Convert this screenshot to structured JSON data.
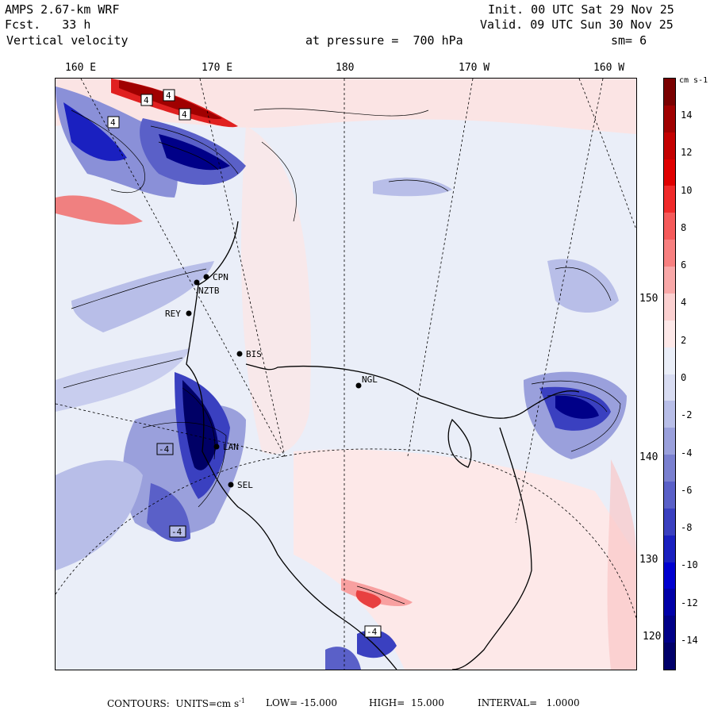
{
  "header": {
    "model": "AMPS 2.67-km WRF",
    "fcst": "Fcst.   33 h",
    "field": "Vertical velocity",
    "init": "Init. 00 UTC Sat 29 Nov 25",
    "valid": "Valid. 09 UTC Sun 30 Nov 25",
    "level": "at pressure =  700 hPa",
    "smooth": "sm= 6"
  },
  "longitude_labels": [
    "160 E",
    "170 E",
    "180",
    "170 W",
    "160 W"
  ],
  "latitude_labels": [
    "150 W",
    "140 W",
    "130 W",
    "120 W"
  ],
  "stations": [
    "CPN",
    "NZTB",
    "REY",
    "BIS",
    "NGL",
    "LAN",
    "SEL"
  ],
  "extrema_labels": [
    "4",
    "4",
    "4",
    "4",
    "-4",
    "-4",
    "-4"
  ],
  "colorbar": {
    "unit": "cm s-1",
    "ticks": [
      "14",
      "12",
      "10",
      "8",
      "6",
      "4",
      "2",
      "0",
      "-2",
      "-4",
      "-6",
      "-8",
      "-10",
      "-12",
      "-14"
    ],
    "colors": [
      "#7a0000",
      "#a00000",
      "#c40000",
      "#e00000",
      "#f02a2a",
      "#f55a5a",
      "#f88080",
      "#f9a8a8",
      "#fbd0d0",
      "#fde8e8",
      "#eaeef8",
      "#d8dcf2",
      "#b8bee8",
      "#9aa0dc",
      "#7a80d0",
      "#5a60c8",
      "#3a40c0",
      "#1a20c0",
      "#0000d0",
      "#0000a8",
      "#000088",
      "#00006a"
    ]
  },
  "footer": {
    "contours": "CONTOURS:  UNITS=cm s",
    "units_exp": "-1",
    "low": "LOW= -15.000",
    "high": "HIGH=  15.000",
    "interval": "INTERVAL=   1.0000"
  }
}
